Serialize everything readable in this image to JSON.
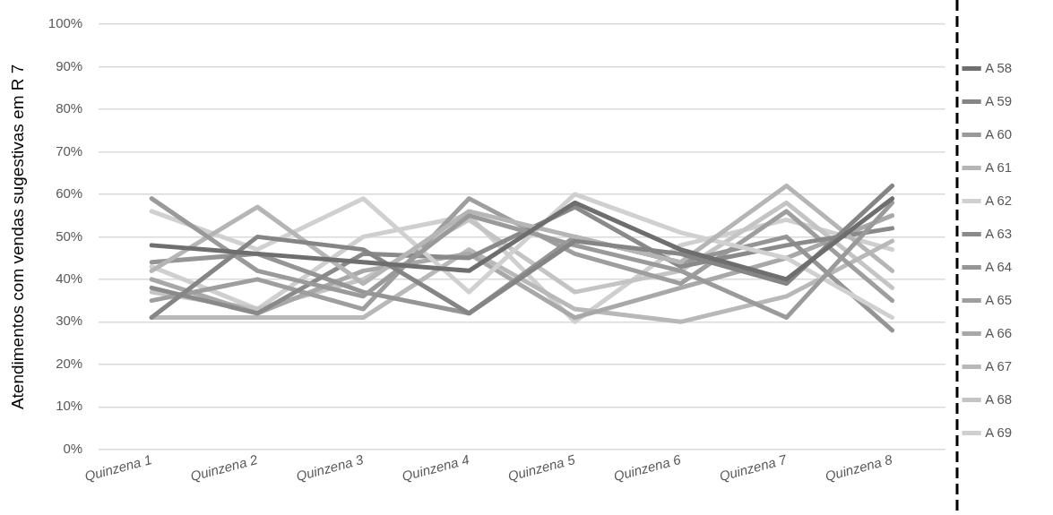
{
  "chart_data": {
    "type": "line",
    "ylabel": "Atendimentos com vendas sugestivas em R 7",
    "categories": [
      "Quinzena 1",
      "Quinzena 2",
      "Quinzena 3",
      "Quinzena 4",
      "Quinzena 5",
      "Quinzena 6",
      "Quinzena 7",
      "Quinzena 8"
    ],
    "ylim": [
      0,
      100
    ],
    "yticks": [
      {
        "value": 0,
        "label": "0%"
      },
      {
        "value": 10,
        "label": "10%"
      },
      {
        "value": 20,
        "label": "20%"
      },
      {
        "value": 30,
        "label": "30%"
      },
      {
        "value": 40,
        "label": "40%"
      },
      {
        "value": 50,
        "label": "50%"
      },
      {
        "value": 60,
        "label": "60%"
      },
      {
        "value": 70,
        "label": "70%"
      },
      {
        "value": 80,
        "label": "80%"
      },
      {
        "value": 90,
        "label": "90%"
      },
      {
        "value": 100,
        "label": "100%"
      }
    ],
    "grid": "y",
    "legend": "right",
    "marker": "none",
    "line_style": "solid",
    "series": [
      {
        "name": "A 58",
        "color": "#6e6e6e",
        "values": [
          48,
          46,
          44,
          42,
          58,
          47,
          40,
          59
        ]
      },
      {
        "name": "A 59",
        "color": "#858585",
        "values": [
          31,
          50,
          47,
          32,
          49,
          46,
          39,
          62
        ]
      },
      {
        "name": "A 60",
        "color": "#9a9a9a",
        "values": [
          59,
          42,
          36,
          55,
          48,
          42,
          31,
          58
        ]
      },
      {
        "name": "A 61",
        "color": "#b5b5b5",
        "values": [
          42,
          57,
          39,
          56,
          50,
          44,
          62,
          42
        ]
      },
      {
        "name": "A 62",
        "color": "#d0d0d0",
        "values": [
          56,
          47,
          59,
          37,
          60,
          51,
          45,
          31
        ]
      },
      {
        "name": "A 63",
        "color": "#8a8a8a",
        "values": [
          38,
          32,
          46,
          45,
          57,
          43,
          48,
          52
        ]
      },
      {
        "name": "A 64",
        "color": "#959595",
        "values": [
          44,
          46,
          37,
          32,
          50,
          44,
          50,
          28
        ]
      },
      {
        "name": "A 65",
        "color": "#9e9e9e",
        "values": [
          35,
          40,
          33,
          59,
          46,
          39,
          56,
          35
        ]
      },
      {
        "name": "A 66",
        "color": "#a8a8a8",
        "values": [
          40,
          32,
          42,
          46,
          31,
          38,
          45,
          55
        ]
      },
      {
        "name": "A 67",
        "color": "#b8b8b8",
        "values": [
          31,
          31,
          31,
          47,
          33,
          30,
          36,
          49
        ]
      },
      {
        "name": "A 68",
        "color": "#c4c4c4",
        "values": [
          37,
          33,
          40,
          54,
          37,
          42,
          58,
          38
        ]
      },
      {
        "name": "A 69",
        "color": "#cfcfcf",
        "values": [
          43,
          33,
          50,
          55,
          30,
          48,
          54,
          47
        ]
      }
    ]
  }
}
